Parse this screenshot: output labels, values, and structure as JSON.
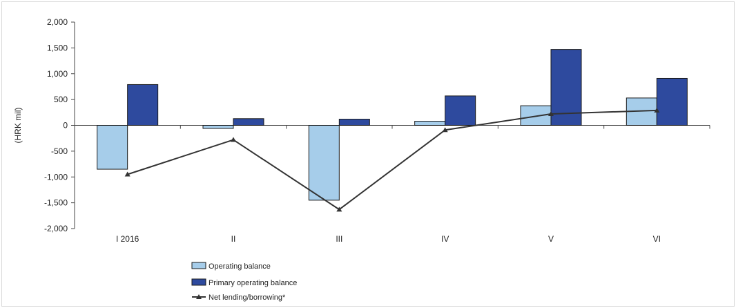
{
  "chart_data": {
    "type": "bar",
    "ylabel": "(HRK mil)",
    "xlabel": "",
    "ylim": [
      -2000,
      2000
    ],
    "yticks": [
      2000,
      1500,
      1000,
      500,
      0,
      -500,
      -1000,
      -1500,
      -2000
    ],
    "ytick_labels": [
      "2,000",
      "1,500",
      "1,000",
      "500",
      "0",
      "-500",
      "-1,000",
      "-1,500",
      "-2,000"
    ],
    "categories": [
      "I 2016",
      "II",
      "III",
      "IV",
      "V",
      "VI"
    ],
    "grid": false,
    "legend_position": "bottom",
    "series": [
      {
        "name": "Operating balance",
        "kind": "bar",
        "color": "#a6cdea",
        "values": [
          -850,
          -60,
          -1450,
          80,
          380,
          530
        ]
      },
      {
        "name": "Primary operating balance",
        "kind": "bar",
        "color": "#2e4a9e",
        "values": [
          790,
          130,
          120,
          570,
          1470,
          910
        ]
      },
      {
        "name": "Net lending/borrowing*",
        "kind": "line",
        "color": "#333333",
        "marker": "triangle",
        "values": [
          -950,
          -280,
          -1630,
          -90,
          220,
          290
        ]
      }
    ]
  }
}
